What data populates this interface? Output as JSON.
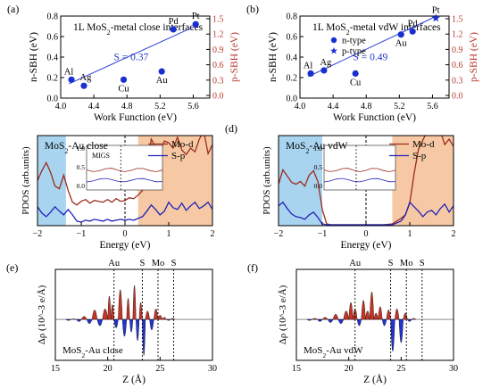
{
  "chart_data": [
    {
      "id": "a",
      "panel_label": "(a)",
      "type": "scatter",
      "title": "1L MoS2-metal close interfaces",
      "xlabel": "Work Function (eV)",
      "ylabel": "n-SBH (eV)",
      "ylabel_right": "p-SBH (eV)",
      "xlim": [
        4.0,
        5.8
      ],
      "ylim": [
        0,
        0.8
      ],
      "xticks": [
        "4.0",
        "4.4",
        "4.8",
        "5.2",
        "5.6"
      ],
      "yticks": [
        "0.0",
        "0.2",
        "0.4",
        "0.6",
        "0.8"
      ],
      "yticks_right": [
        "1.5",
        "1.2",
        "0.9",
        "0.6",
        "0.3",
        "0.0"
      ],
      "points": [
        {
          "label": "Al",
          "x": 4.13,
          "y": 0.18
        },
        {
          "label": "Ag",
          "x": 4.28,
          "y": 0.12
        },
        {
          "label": "Cu",
          "x": 4.76,
          "y": 0.18
        },
        {
          "label": "Au",
          "x": 5.22,
          "y": 0.26
        },
        {
          "label": "Pd",
          "x": 5.36,
          "y": 0.67
        },
        {
          "label": "Pt",
          "x": 5.63,
          "y": 0.72
        }
      ],
      "fit_line": {
        "x": [
          4.1,
          5.65
        ],
        "y": [
          0.14,
          0.71
        ]
      },
      "annotation": "S = 0.37"
    },
    {
      "id": "b",
      "panel_label": "(b)",
      "type": "scatter",
      "title": "1L MoS2-metal vdW interfaces",
      "xlabel": "Work Function (eV)",
      "ylabel": "n-SBH (eV)",
      "ylabel_right": "p-SBH (eV)",
      "xlim": [
        4.0,
        5.8
      ],
      "ylim": [
        0,
        0.8
      ],
      "xticks": [
        "4.0",
        "4.4",
        "4.8",
        "5.2",
        "5.6"
      ],
      "yticks": [
        "0.0",
        "0.2",
        "0.4",
        "0.6",
        "0.8"
      ],
      "yticks_right": [
        "1.5",
        "1.2",
        "0.9",
        "0.6",
        "0.3",
        "0.0"
      ],
      "legend": [
        {
          "label": "n-type",
          "marker": "circle"
        },
        {
          "label": "p-type",
          "marker": "star"
        }
      ],
      "points": [
        {
          "label": "Al",
          "x": 4.13,
          "y": 0.24,
          "marker": "circle"
        },
        {
          "label": "Ag",
          "x": 4.29,
          "y": 0.27,
          "marker": "circle"
        },
        {
          "label": "Cu",
          "x": 4.67,
          "y": 0.24,
          "marker": "circle"
        },
        {
          "label": "Au",
          "x": 5.22,
          "y": 0.62,
          "marker": "circle"
        },
        {
          "label": "Pd",
          "x": 5.36,
          "y": 0.65,
          "marker": "circle"
        },
        {
          "label": "Pt",
          "x": 5.64,
          "y": 0.78,
          "marker": "star"
        }
      ],
      "fit_line": {
        "x": [
          4.1,
          5.65
        ],
        "y": [
          0.21,
          0.8
        ]
      },
      "annotation": "S = 0.49"
    },
    {
      "id": "c",
      "panel_label": "(c)",
      "type": "line",
      "title": "MoS2-Au close",
      "xlabel": "Energy (eV)",
      "ylabel": "PDOS (arb.units)",
      "xlim": [
        -2,
        2
      ],
      "xticks": [
        "-2",
        "-1",
        "0",
        "1",
        "2"
      ],
      "shaded_regions": [
        {
          "from": -2.0,
          "to": -1.35,
          "color": "#a9d4ef"
        },
        {
          "from": 0.3,
          "to": 2.0,
          "color": "#f6c9a4"
        }
      ],
      "series": [
        {
          "name": "Mo-d",
          "color": "#9b2c1e",
          "x": [
            -2,
            -1.9,
            -1.8,
            -1.7,
            -1.6,
            -1.5,
            -1.4,
            -1.3,
            -1.2,
            -1.1,
            -1.0,
            -0.9,
            -0.8,
            -0.7,
            -0.6,
            -0.5,
            -0.4,
            -0.3,
            -0.2,
            -0.1,
            0.0,
            0.1,
            0.2,
            0.3,
            0.4,
            0.5,
            0.55,
            0.6,
            0.65,
            0.7,
            0.8,
            0.9,
            1.0,
            1.1,
            1.2,
            1.3,
            1.4,
            1.5,
            1.6,
            1.7,
            1.8,
            1.9,
            2.0
          ],
          "y": [
            5.0,
            6.1,
            7.0,
            5.9,
            4.4,
            4.1,
            5.6,
            3.9,
            2.6,
            2.3,
            2.7,
            2.9,
            2.5,
            2.8,
            2.7,
            2.6,
            2.9,
            2.6,
            3.0,
            2.7,
            2.8,
            3.1,
            3.0,
            3.4,
            3.9,
            5.6,
            7.8,
            9.6,
            9.2,
            8.3,
            8.1,
            9.4,
            9.2,
            8.6,
            9.8,
            8.4,
            7.9,
            8.6,
            8.2,
            9.6,
            10.5,
            8.0,
            9.0
          ]
        },
        {
          "name": "S-p",
          "color": "#2222bb",
          "x": [
            -2,
            -1.9,
            -1.8,
            -1.7,
            -1.6,
            -1.5,
            -1.4,
            -1.3,
            -1.2,
            -1.1,
            -1.0,
            -0.9,
            -0.8,
            -0.7,
            -0.6,
            -0.5,
            -0.4,
            -0.3,
            -0.2,
            -0.1,
            0.0,
            0.1,
            0.2,
            0.3,
            0.4,
            0.5,
            0.6,
            0.7,
            0.8,
            0.9,
            1.0,
            1.1,
            1.2,
            1.3,
            1.4,
            1.5,
            1.6,
            1.7,
            1.8,
            1.9,
            2.0
          ],
          "y": [
            2.1,
            1.4,
            1.0,
            1.5,
            2.1,
            1.6,
            1.2,
            1.8,
            1.2,
            0.5,
            0.4,
            0.6,
            0.5,
            0.7,
            0.6,
            0.5,
            0.7,
            0.5,
            0.6,
            0.7,
            0.6,
            0.7,
            0.6,
            0.8,
            1.0,
            1.6,
            2.3,
            1.8,
            1.2,
            1.6,
            2.6,
            2.0,
            1.8,
            2.5,
            1.7,
            2.2,
            2.6,
            1.9,
            2.2,
            2.6,
            1.8
          ]
        }
      ],
      "inset": {
        "label": "MIGS"
      },
      "legend": [
        "Mo-d",
        "S-p"
      ]
    },
    {
      "id": "d",
      "panel_label": "(d)",
      "type": "line",
      "title": "MoS2-Au vdW",
      "xlabel": "Energy (eV)",
      "ylabel": "PDOS (arb.units)",
      "xlim": [
        -2,
        2
      ],
      "xticks": [
        "-2",
        "-1",
        "0",
        "1",
        "2"
      ],
      "shaded_regions": [
        {
          "from": -2.0,
          "to": -1.0,
          "color": "#a9d4ef"
        },
        {
          "from": 0.6,
          "to": 2.0,
          "color": "#f6c9a4"
        }
      ],
      "series": [
        {
          "name": "Mo-d",
          "color": "#9b2c1e",
          "x": [
            -2,
            -1.9,
            -1.8,
            -1.7,
            -1.6,
            -1.5,
            -1.4,
            -1.3,
            -1.2,
            -1.1,
            -1.0,
            -0.9,
            -0.8,
            -0.6,
            -0.4,
            -0.2,
            0.0,
            0.2,
            0.4,
            0.6,
            0.7,
            0.8,
            0.9,
            1.0,
            1.1,
            1.2,
            1.3,
            1.4,
            1.5,
            1.6,
            1.7,
            1.8,
            1.9,
            2.0
          ],
          "y": [
            4.6,
            6.2,
            5.5,
            4.8,
            4.6,
            4.9,
            4.4,
            5.6,
            6.1,
            4.9,
            1.8,
            0.2,
            0.1,
            0.1,
            0.1,
            0.1,
            0.1,
            0.1,
            0.1,
            0.2,
            0.5,
            0.8,
            1.2,
            2.5,
            5.8,
            8.5,
            9.5,
            10.5,
            11.0,
            11.5,
            10.5,
            9.0,
            9.6,
            8.8
          ]
        },
        {
          "name": "S-p",
          "color": "#2222bb",
          "x": [
            -2,
            -1.9,
            -1.8,
            -1.7,
            -1.6,
            -1.5,
            -1.4,
            -1.3,
            -1.2,
            -1.1,
            -1.0,
            -0.9,
            -0.8,
            -0.6,
            -0.4,
            -0.2,
            0.0,
            0.2,
            0.4,
            0.6,
            0.7,
            0.8,
            0.9,
            1.0,
            1.1,
            1.2,
            1.3,
            1.4,
            1.5,
            1.6,
            1.7,
            1.8,
            1.9,
            2.0
          ],
          "y": [
            2.2,
            2.6,
            1.9,
            1.3,
            1.0,
            0.9,
            0.7,
            1.2,
            1.5,
            0.9,
            0.2,
            0.1,
            0.1,
            0.1,
            0.1,
            0.1,
            0.1,
            0.1,
            0.1,
            0.1,
            0.3,
            0.5,
            1.2,
            2.6,
            2.1,
            1.6,
            1.0,
            1.5,
            1.7,
            1.2,
            1.9,
            2.4,
            1.5,
            2.2
          ]
        }
      ],
      "legend": [
        "Mo-d",
        "S-p"
      ]
    },
    {
      "id": "e",
      "panel_label": "(e)",
      "type": "area",
      "annotation": "MoS2-Au close",
      "xlabel": "Z (Å)",
      "ylabel": "Δρ (10^-3 e/Å)",
      "xlim": [
        15,
        30
      ],
      "xticks": [
        "15",
        "20",
        "25",
        "30"
      ],
      "layer_labels": [
        {
          "label": "Au",
          "x": 20.6
        },
        {
          "label": "S",
          "x": 23.3
        },
        {
          "label": "Mo",
          "x": 24.8
        },
        {
          "label": "S",
          "x": 26.3
        }
      ],
      "x": [
        15,
        16,
        16.5,
        17,
        17.5,
        18,
        18.5,
        19,
        19.5,
        20,
        20.3,
        20.6,
        21.0,
        21.4,
        21.8,
        22.1,
        22.4,
        22.7,
        23.0,
        23.3,
        23.6,
        24.0,
        24.4,
        24.8,
        25.2,
        25.6,
        26.0,
        26.4,
        27,
        28,
        30
      ],
      "y": [
        0,
        0,
        -0.1,
        0.05,
        -0.2,
        0.3,
        -0.4,
        0.9,
        -0.6,
        1.0,
        2.2,
        1.4,
        -0.8,
        2.8,
        -1.6,
        2.0,
        -1.2,
        3.2,
        -2.0,
        1.6,
        -3.4,
        0.8,
        -1.0,
        1.0,
        0.4,
        0.2,
        -0.1,
        0.1,
        0,
        0,
        0
      ]
    },
    {
      "id": "f",
      "panel_label": "(f)",
      "type": "area",
      "annotation": "MoS2-Au vdW",
      "xlabel": "Z (Å)",
      "ylabel": "Δρ (10^-3 e/Å)",
      "xlim": [
        15,
        30
      ],
      "xticks": [
        "15",
        "20",
        "25",
        "30"
      ],
      "layer_labels": [
        {
          "label": "Au",
          "x": 20.6
        },
        {
          "label": "S",
          "x": 24.0
        },
        {
          "label": "Mo",
          "x": 25.5
        },
        {
          "label": "S",
          "x": 27.0
        }
      ],
      "x": [
        15,
        16,
        16.5,
        17,
        17.5,
        18,
        18.5,
        19,
        19.5,
        20,
        20.4,
        20.8,
        21.2,
        21.6,
        22.0,
        22.4,
        22.8,
        23.2,
        23.6,
        24.0,
        24.4,
        24.8,
        25.2,
        25.6,
        26.0,
        26.4,
        27,
        28,
        30
      ],
      "y": [
        0,
        0,
        -0.1,
        0.1,
        -0.2,
        0.2,
        -0.3,
        0.5,
        -0.4,
        0.8,
        1.6,
        1.0,
        -0.6,
        1.8,
        0.8,
        2.6,
        0.6,
        1.2,
        -0.6,
        0.9,
        -3.0,
        1.0,
        -2.2,
        0.6,
        -0.2,
        0.1,
        0,
        0,
        0
      ]
    }
  ]
}
